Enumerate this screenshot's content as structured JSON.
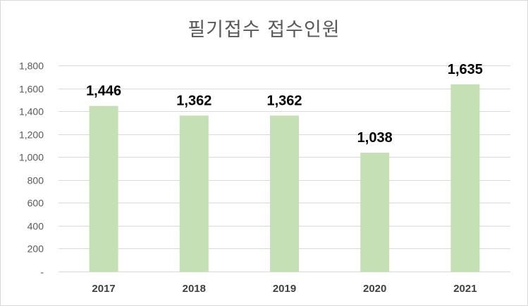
{
  "chart_data": {
    "type": "bar",
    "title": "필기접수 접수인원",
    "categories": [
      "2017",
      "2018",
      "2019",
      "2020",
      "2021"
    ],
    "values": [
      1446,
      1362,
      1362,
      1038,
      1635
    ],
    "value_labels": [
      "1,446",
      "1,362",
      "1,362",
      "1,038",
      "1,635"
    ],
    "ylim": [
      0,
      1800
    ],
    "yticks": [
      0,
      200,
      400,
      600,
      800,
      1000,
      1200,
      1400,
      1600,
      1800
    ],
    "ytick_labels": [
      "-",
      "200",
      "400",
      "600",
      "800",
      "1,000",
      "1,200",
      "1,400",
      "1,600",
      "1,800"
    ],
    "xlabel": "",
    "ylabel": "",
    "grid": true,
    "legend": "none",
    "bar_color": "#c5e0b4",
    "grid_color": "#d9d9d9"
  }
}
